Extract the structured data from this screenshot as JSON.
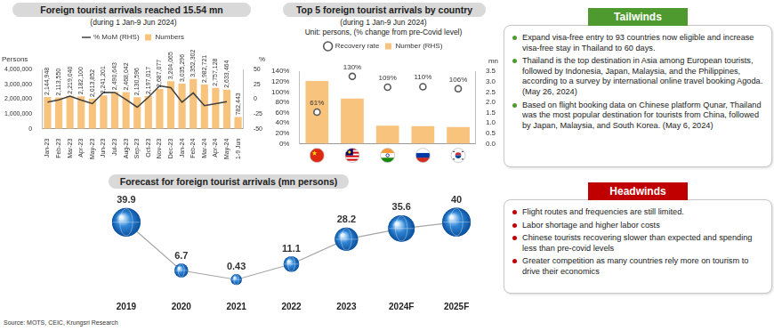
{
  "chart_data": [
    {
      "type": "bar",
      "title": "Foreign tourist arrivals reached 15.54 mn",
      "subtitle": "(during 1 Jan-9 Jun 2024)",
      "ylabel": "Persons",
      "y2label": "%",
      "categories": [
        "Jan-23",
        "Feb-23",
        "Mar-23",
        "Apr-23",
        "May-23",
        "Jun-23",
        "Jul-23",
        "Aug-23",
        "Sep-23",
        "Oct-23",
        "Nov-23",
        "Dec-23",
        "Jan-24",
        "Feb-24",
        "Mar-24",
        "Apr-24",
        "May-24",
        "1-9 Jun"
      ],
      "series": [
        {
          "name": "Numbers",
          "type": "bar",
          "color": "#f8c37d",
          "data_labels": true,
          "values": [
            2144948,
            2113550,
            2219040,
            2182100,
            2013852,
            2241201,
            2490643,
            2468042,
            2130596,
            2197017,
            2687077,
            3204065,
            3035296,
            3352302,
            2982721,
            2757128,
            2633464,
            782443
          ],
          "value_labels": [
            "2,144,948",
            "2,113,550",
            "2,219,040",
            "2,182,100",
            "2,013,852",
            "2,241,201",
            "2,490,643",
            "2,468,042",
            "2,130,596",
            "2,197,017",
            "2,687,077",
            "3,204,065",
            "3,035,296",
            "3,352,302",
            "2,982,721",
            "2,757,128",
            "2,633,464",
            "782,443"
          ]
        },
        {
          "name": "% MoM (RHS)",
          "type": "line",
          "axis": "y2",
          "color": "#404040",
          "values": [
            -5,
            -1.5,
            5,
            -1.7,
            -7.7,
            11.3,
            11.1,
            -0.9,
            -13.7,
            3.1,
            22.3,
            19.2,
            -5.3,
            10.4,
            -11,
            -7.6,
            -4.5,
            null
          ]
        }
      ],
      "ylim": [
        0,
        4000000
      ],
      "yticks": [
        0,
        {
          "value": 1000000,
          "label": "1,000,000"
        },
        {
          "value": 2000000,
          "label": "2,000,000"
        },
        {
          "value": 3000000,
          "label": "3,000,000"
        },
        {
          "value": 4000000,
          "label": "4,000,000"
        }
      ],
      "y2lim": [
        -50,
        50
      ],
      "y2ticks": [
        -50,
        -25,
        0,
        25,
        50
      ],
      "grid": false,
      "legend": "top"
    },
    {
      "type": "bar",
      "title": "Top 5 foreign tourist arrivals by country",
      "subtitle": "(during 1 Jan-9 Jun 2024)",
      "annotations": [
        "Unit: persons, (% change from pre-Covid level)"
      ],
      "y2label": "mn",
      "categories": [
        null,
        null,
        null,
        null,
        null
      ],
      "series": [
        {
          "name": "Number (RHS)",
          "type": "bar",
          "axis": "y2",
          "color": "#f8c37d",
          "values": [
            3.03,
            2.18,
            0.87,
            0.85,
            0.81
          ]
        },
        {
          "name": "Recovery rate",
          "type": "scatter",
          "marker": "circle",
          "color": "#595959",
          "data_labels": true,
          "values": [
            61,
            130,
            109,
            110,
            106
          ],
          "value_labels": [
            "61%",
            "130%",
            "109%",
            "110%",
            "106%"
          ]
        }
      ],
      "ylim": [
        0,
        140
      ],
      "yticks": [
        {
          "value": 0,
          "label": "0%"
        },
        {
          "value": 20,
          "label": "20%"
        },
        {
          "value": 40,
          "label": "40%"
        },
        {
          "value": 60,
          "label": "60%"
        },
        {
          "value": 80,
          "label": "80%"
        },
        {
          "value": 100,
          "label": "100%"
        },
        {
          "value": 120,
          "label": "120%"
        },
        {
          "value": 140,
          "label": "140%"
        }
      ],
      "y2lim": [
        0,
        3.5
      ],
      "y2ticks": [
        {
          "value": 0,
          "label": "0.0"
        },
        0.5,
        {
          "value": 1,
          "label": "1.0"
        },
        1.5,
        {
          "value": 2,
          "label": "2.0"
        },
        2.5,
        {
          "value": 3,
          "label": "3.0"
        },
        3.5
      ],
      "grid": false,
      "legend": "top"
    },
    {
      "type": "line",
      "title": "Forecast for foreign tourist arrivals (mn persons)",
      "categories": [
        "2019",
        "2020",
        "2021",
        "2022",
        "2023",
        "2024F",
        "2025F"
      ],
      "values": [
        39.9,
        6.7,
        0.43,
        11.1,
        28.2,
        35.6,
        40
      ],
      "color": "#2f86d6",
      "marker": "circle",
      "ylim": [
        -8,
        52
      ],
      "tick_labels": "x",
      "grid": false,
      "data_labels": true
    }
  ],
  "tailwinds": {
    "title": "Tailwinds",
    "items": [
      "Expand visa-free entry to 93 countries now eligible and increase visa-free stay in Thailand to 60 days.",
      "Thailand is the top destination in Asia among European tourists, followed by Indonesia, Japan, Malaysia, and the Philippines, according to a survey by international online travel booking Agoda. (May 26, 2024)",
      "Based on flight booking data on Chinese platform Qunar, Thailand was the most popular destination for tourists from China, followed by Japan, Malaysia, and South Korea. (May 6, 2024)"
    ]
  },
  "headwinds": {
    "title": "Headwinds",
    "items": [
      "Flight routes and frequencies are still limited.",
      "Labor shortage and higher labor costs",
      "Chinese tourists recovering slower than expected and spending less than pre-covid levels",
      "Greater competition as many countries rely more on tourism to drive their economics"
    ]
  },
  "source": "Source: MOTS, CEIC, Krungsri Research"
}
